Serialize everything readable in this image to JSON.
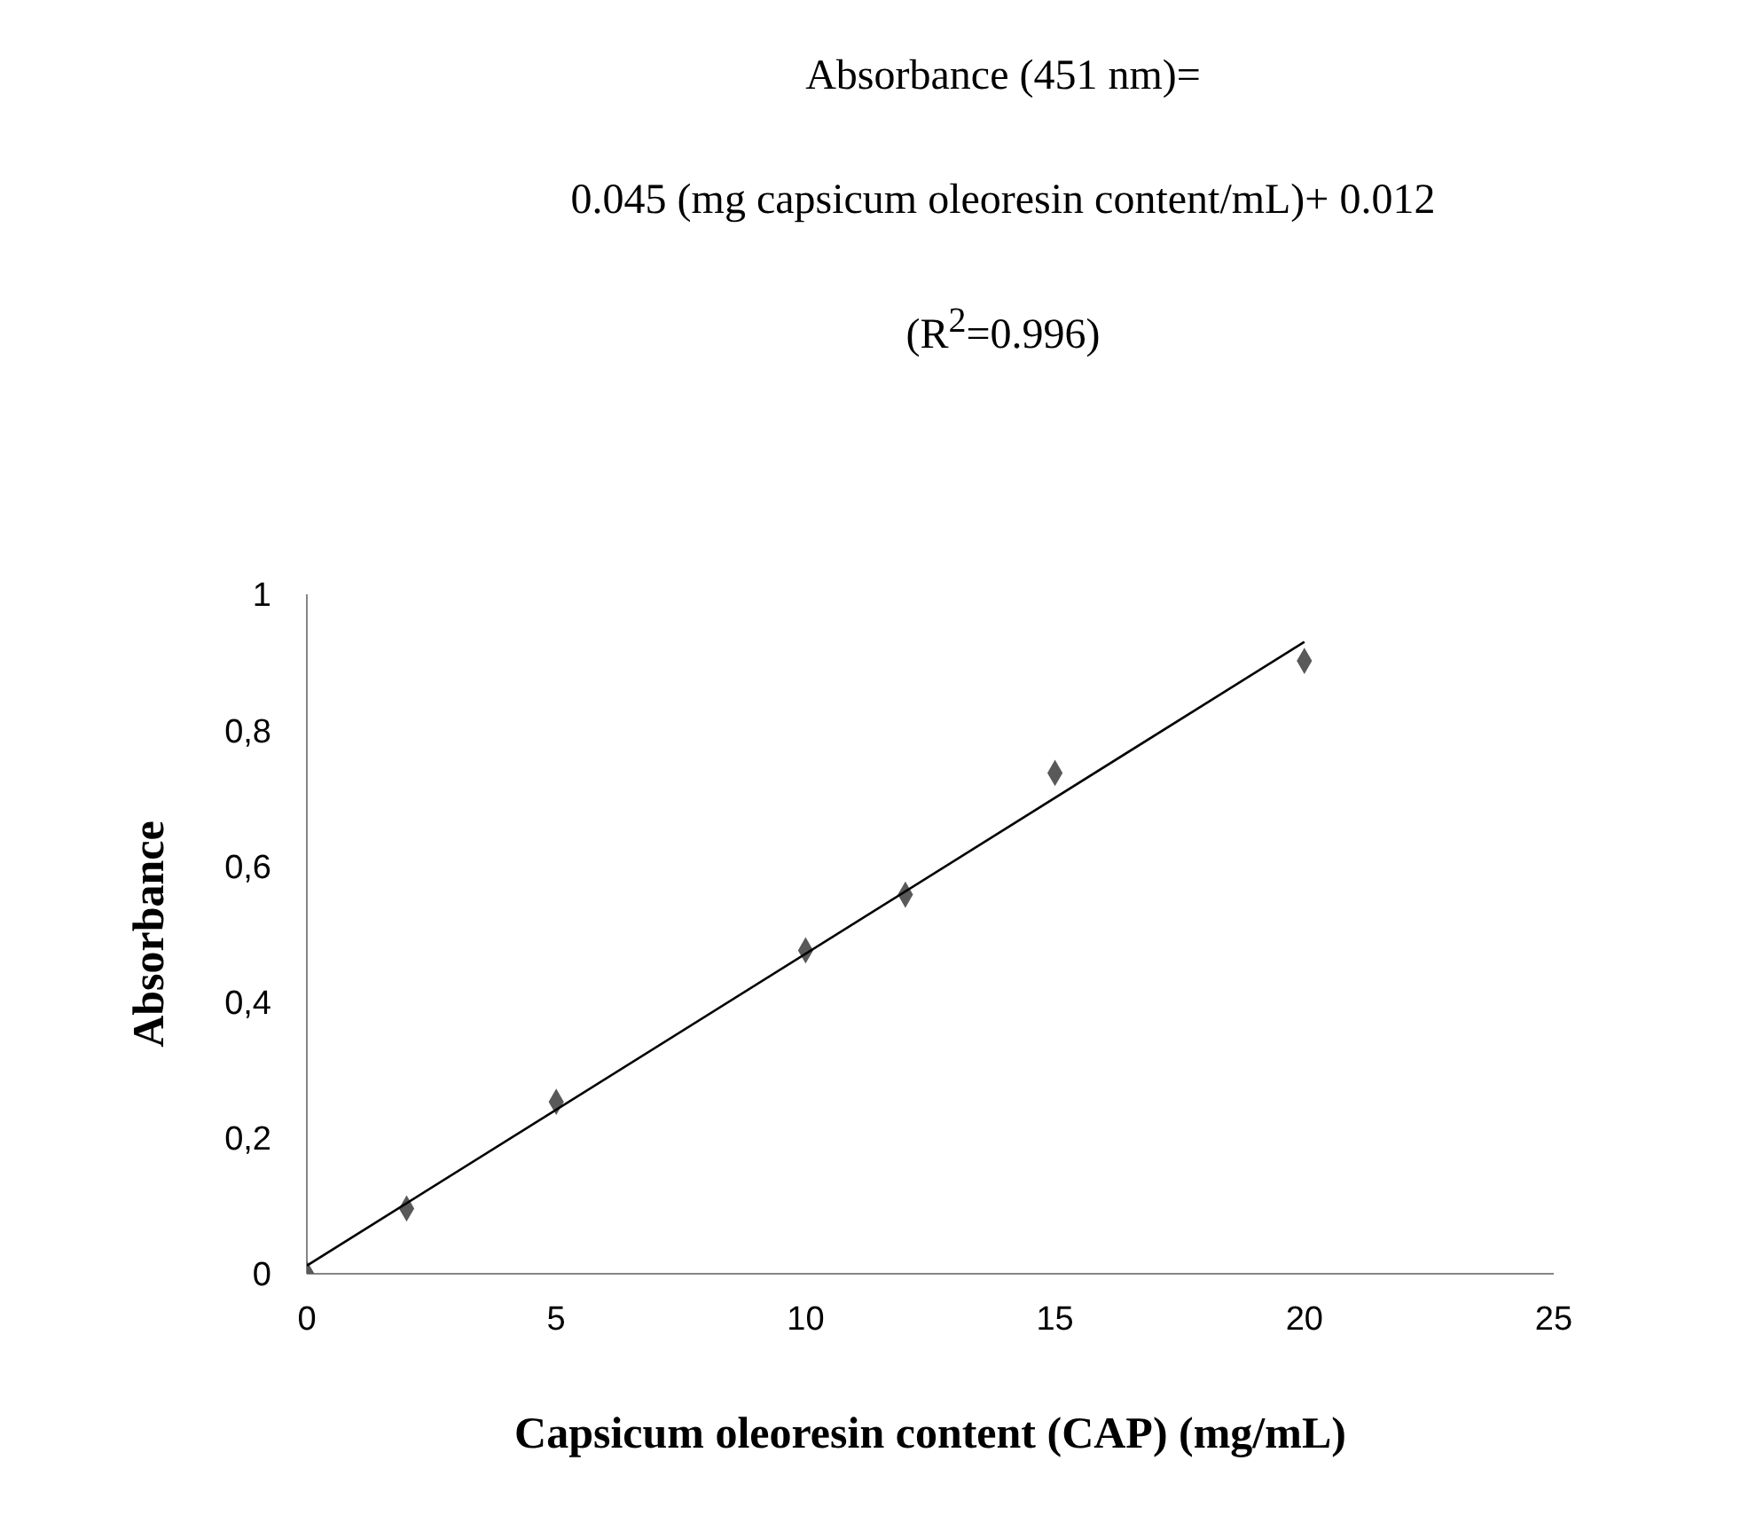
{
  "chart_data": {
    "type": "scatter",
    "annotations": [
      "Absorbance (451 nm)=",
      "0.045 (mg capsicum oleoresin content/mL)+ 0.012",
      "(R$^{2}$=0.996)"
    ],
    "xlabel": "Capsicum oleoresin content (CAP) (mg/mL)",
    "ylabel": "Absorbance",
    "xlim": [
      0,
      25
    ],
    "xticks": [
      0,
      5,
      10,
      15,
      20,
      25
    ],
    "ylim": [
      0,
      1
    ],
    "yticks": [
      0,
      {
        "value": 0.2,
        "label": "0,2"
      },
      {
        "value": 0.4,
        "label": "0,4"
      },
      {
        "value": 0.6,
        "label": "0,6"
      },
      {
        "value": 0.8,
        "label": "0,8"
      },
      1
    ],
    "grid": false,
    "marker": "diamond",
    "series": [
      {
        "color": "#595959",
        "x": [
          0,
          2,
          5,
          10,
          12,
          15,
          20
        ],
        "values": [
          0,
          0.096,
          0.253,
          0.476,
          0.558,
          0.737,
          0.902
        ]
      },
      {
        "type": "line",
        "color": "#000000",
        "marker": "none",
        "line_style": "solid",
        "x": [
          0,
          20
        ],
        "values": [
          0.012,
          0.93
        ]
      }
    ]
  }
}
